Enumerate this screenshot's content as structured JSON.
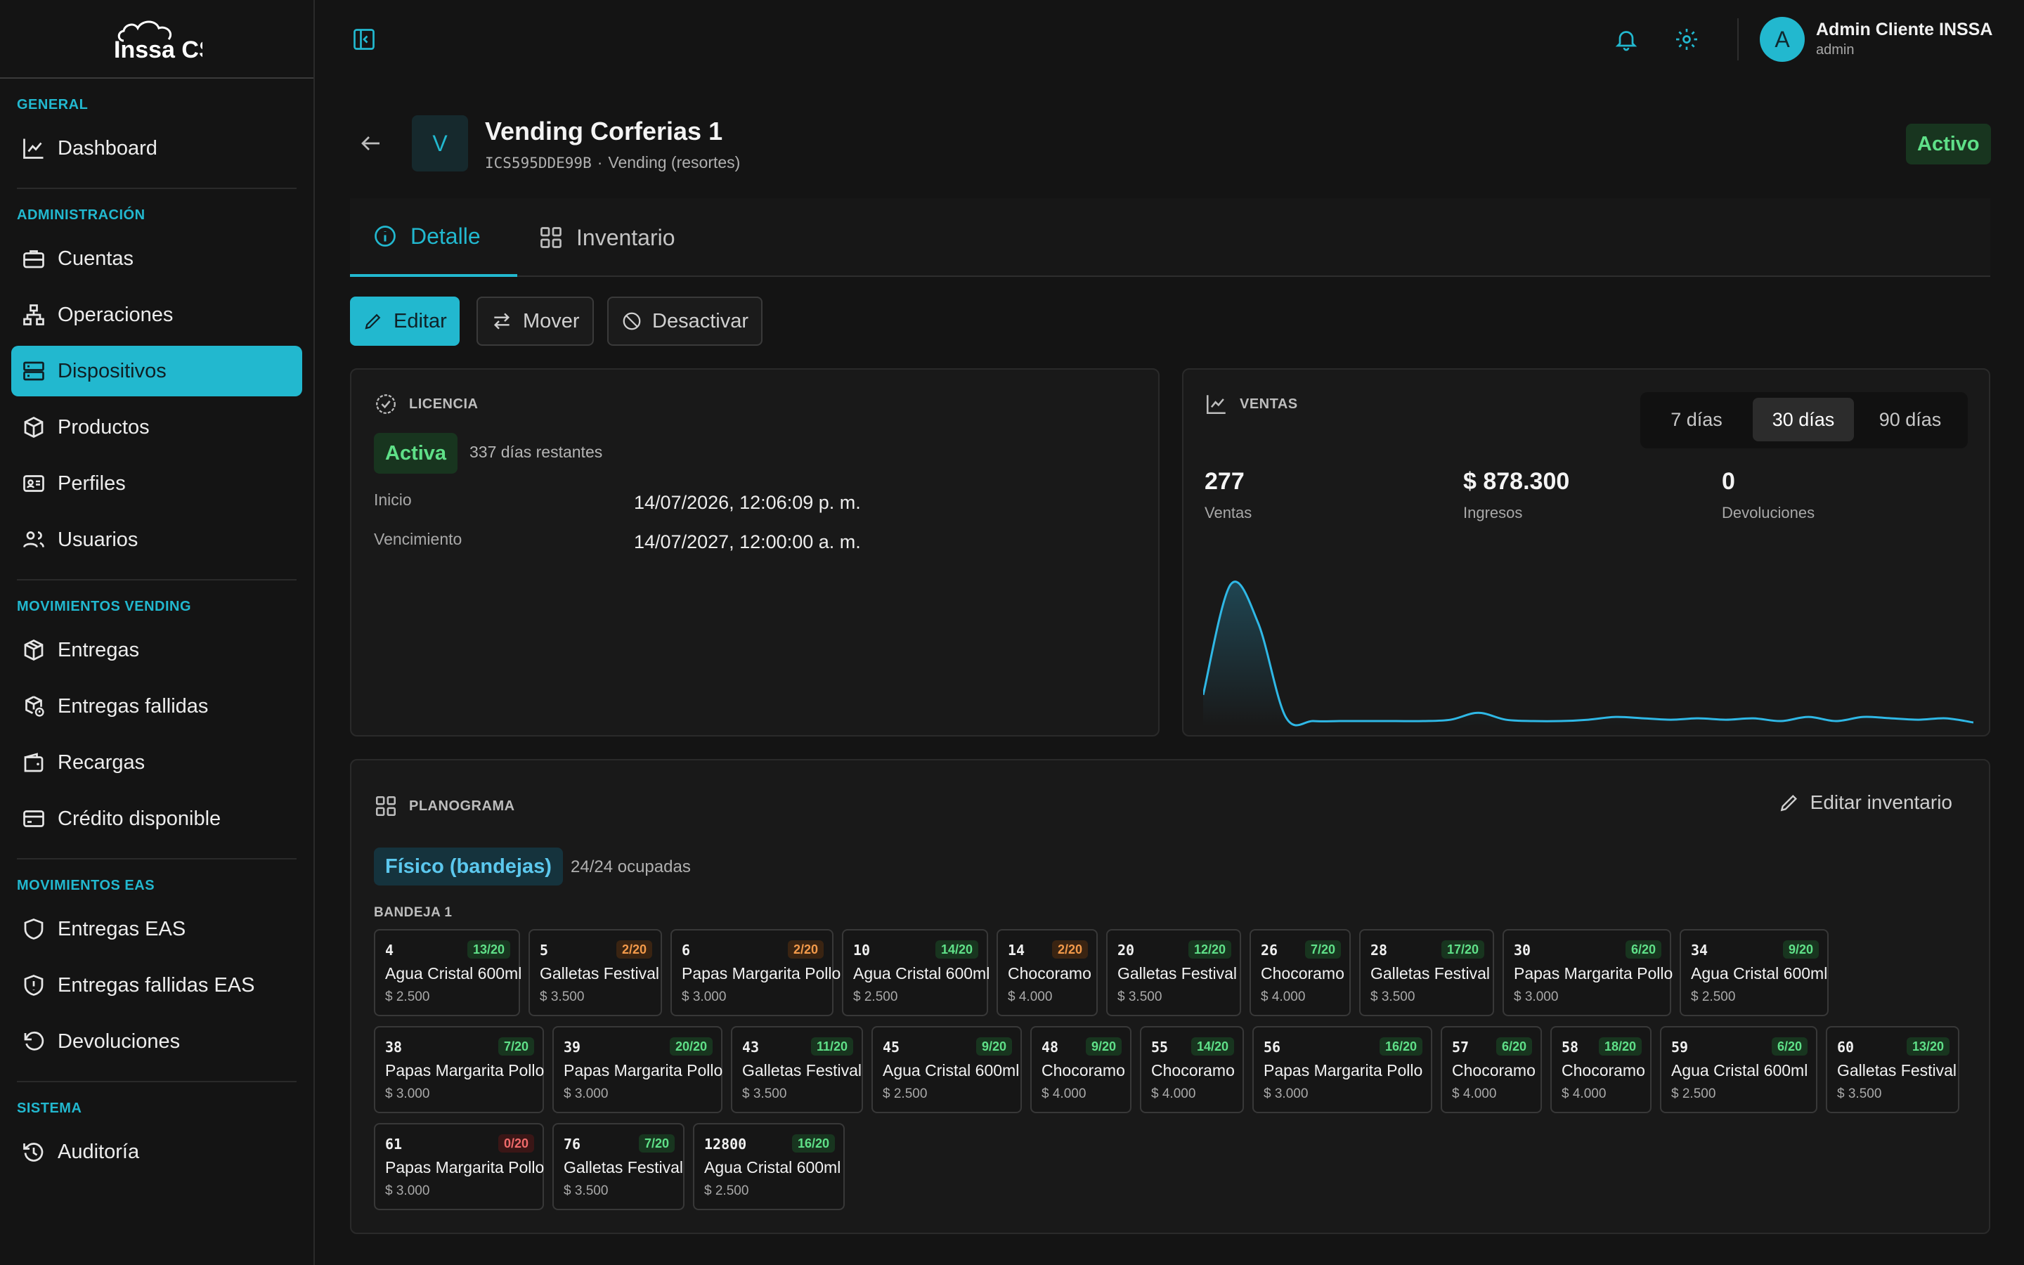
{
  "logo_text": "Inssa CS",
  "sidebar": {
    "sections": [
      {
        "title": "GENERAL",
        "items": [
          "Dashboard"
        ]
      },
      {
        "title": "ADMINISTRACIÓN",
        "items": [
          "Cuentas",
          "Operaciones",
          "Dispositivos",
          "Productos",
          "Perfiles",
          "Usuarios"
        ]
      },
      {
        "title": "MOVIMIENTOS VENDING",
        "items": [
          "Entregas",
          "Entregas fallidas",
          "Recargas",
          "Crédito disponible"
        ]
      },
      {
        "title": "MOVIMIENTOS EAS",
        "items": [
          "Entregas EAS",
          "Entregas fallidas EAS",
          "Devoluciones"
        ]
      },
      {
        "title": "SISTEMA",
        "items": [
          "Auditoría"
        ]
      }
    ],
    "active_item": "Dispositivos"
  },
  "user": {
    "initial": "A",
    "name": "Admin Cliente INSSA",
    "role": "admin"
  },
  "device": {
    "avatar": "V",
    "name": "Vending Corferias 1",
    "code": "ICS595DDE99B",
    "type": "Vending (resortes)",
    "status": "Activo"
  },
  "tabs": {
    "detail": "Detalle",
    "inventory": "Inventario"
  },
  "actions": {
    "edit": "Editar",
    "move": "Mover",
    "deactivate": "Desactivar"
  },
  "license": {
    "title": "LICENCIA",
    "status": "Activa",
    "remaining": "337 días restantes",
    "start_label": "Inicio",
    "start_value": "14/07/2026, 12:06:09 p. m.",
    "end_label": "Vencimiento",
    "end_value": "14/07/2027, 12:00:00 a. m."
  },
  "sales": {
    "title": "VENTAS",
    "ranges": [
      "7 días",
      "30 días",
      "90 días"
    ],
    "selected_range": "30 días",
    "stats": [
      {
        "value": "277",
        "label": "Ventas"
      },
      {
        "value": "$ 878.300",
        "label": "Ingresos"
      },
      {
        "value": "0",
        "label": "Devoluciones"
      }
    ]
  },
  "chart_data": {
    "type": "area",
    "title": "",
    "xlabel": "",
    "ylabel": "",
    "color": "#2fb8e6",
    "series": [
      {
        "values": [
          20,
          100,
          72,
          4,
          1,
          1,
          1,
          1,
          1,
          2,
          7,
          2,
          1,
          1,
          2,
          4,
          3,
          2,
          3,
          2,
          3,
          1,
          4,
          1,
          4,
          3,
          2,
          3,
          0
        ]
      }
    ],
    "ylim": [
      0,
      110
    ]
  },
  "planogram": {
    "title": "PLANOGRAMA",
    "edit_label": "Editar inventario",
    "mode": "Físico (bandejas)",
    "occupancy": "24/24 ocupadas",
    "tray_label": "BANDEJA 1",
    "slots": [
      {
        "num": "4",
        "stock": "13/20",
        "level": "green",
        "name": "Agua Cristal 600ml",
        "price": "$ 2.500"
      },
      {
        "num": "5",
        "stock": "2/20",
        "level": "orange",
        "name": "Galletas Festival",
        "price": "$ 3.500"
      },
      {
        "num": "6",
        "stock": "2/20",
        "level": "orange",
        "name": "Papas Margarita Pollo",
        "price": "$ 3.000"
      },
      {
        "num": "10",
        "stock": "14/20",
        "level": "green",
        "name": "Agua Cristal 600ml",
        "price": "$ 2.500"
      },
      {
        "num": "14",
        "stock": "2/20",
        "level": "orange",
        "name": "Chocoramo",
        "price": "$ 4.000"
      },
      {
        "num": "20",
        "stock": "12/20",
        "level": "green",
        "name": "Galletas Festival",
        "price": "$ 3.500"
      },
      {
        "num": "26",
        "stock": "7/20",
        "level": "green",
        "name": "Chocoramo",
        "price": "$ 4.000"
      },
      {
        "num": "28",
        "stock": "17/20",
        "level": "green",
        "name": "Galletas Festival",
        "price": "$ 3.500"
      },
      {
        "num": "30",
        "stock": "6/20",
        "level": "green",
        "name": "Papas Margarita Pollo",
        "price": "$ 3.000"
      },
      {
        "num": "34",
        "stock": "9/20",
        "level": "green",
        "name": "Agua Cristal 600ml",
        "price": "$ 2.500"
      },
      {
        "num": "38",
        "stock": "7/20",
        "level": "green",
        "name": "Papas Margarita Pollo",
        "price": "$ 3.000"
      },
      {
        "num": "39",
        "stock": "20/20",
        "level": "green",
        "name": "Papas Margarita Pollo",
        "price": "$ 3.000"
      },
      {
        "num": "43",
        "stock": "11/20",
        "level": "green",
        "name": "Galletas Festival",
        "price": "$ 3.500"
      },
      {
        "num": "45",
        "stock": "9/20",
        "level": "green",
        "name": "Agua Cristal 600ml",
        "price": "$ 2.500"
      },
      {
        "num": "48",
        "stock": "9/20",
        "level": "green",
        "name": "Chocoramo",
        "price": "$ 4.000"
      },
      {
        "num": "55",
        "stock": "14/20",
        "level": "green",
        "name": "Chocoramo",
        "price": "$ 4.000"
      },
      {
        "num": "56",
        "stock": "16/20",
        "level": "green",
        "name": "Papas Margarita Pollo",
        "price": "$ 3.000"
      },
      {
        "num": "57",
        "stock": "6/20",
        "level": "green",
        "name": "Chocoramo",
        "price": "$ 4.000"
      },
      {
        "num": "58",
        "stock": "18/20",
        "level": "green",
        "name": "Chocoramo",
        "price": "$ 4.000"
      },
      {
        "num": "59",
        "stock": "6/20",
        "level": "green",
        "name": "Agua Cristal 600ml",
        "price": "$ 2.500"
      },
      {
        "num": "60",
        "stock": "13/20",
        "level": "green",
        "name": "Galletas Festival",
        "price": "$ 3.500"
      },
      {
        "num": "61",
        "stock": "0/20",
        "level": "red",
        "name": "Papas Margarita Pollo",
        "price": "$ 3.000"
      },
      {
        "num": "76",
        "stock": "7/20",
        "level": "green",
        "name": "Galletas Festival",
        "price": "$ 3.500"
      },
      {
        "num": "12800",
        "stock": "16/20",
        "level": "green",
        "name": "Agua Cristal 600ml",
        "price": "$ 2.500"
      }
    ]
  },
  "colors": {
    "accent": "#22b8cf",
    "active_green": "#5fe088",
    "bg": "#141414"
  }
}
